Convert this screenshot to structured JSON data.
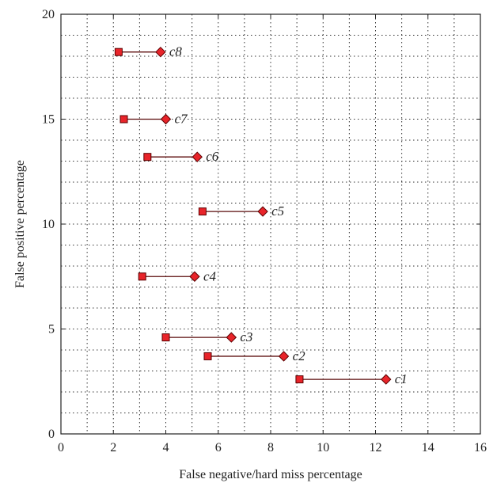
{
  "chart_data": {
    "type": "scatter",
    "xlabel": "False negative/hard miss percentage",
    "ylabel": "False positive percentage",
    "xlim": [
      0,
      16
    ],
    "ylim": [
      0,
      20
    ],
    "x_ticks": [
      "0",
      "2",
      "4",
      "6",
      "8",
      "10",
      "12",
      "14",
      "16"
    ],
    "y_ticks": [
      "0",
      "5",
      "10",
      "15",
      "20"
    ],
    "grid": true,
    "grid_style": "dotted",
    "colors": {
      "marker_fill": "#e8242a",
      "marker_edge": "#5a0000",
      "line": "#5a0a0a"
    },
    "series": [
      {
        "marker": "square"
      },
      {
        "marker": "diamond"
      }
    ],
    "pairs": [
      {
        "label": "c1",
        "square": [
          9.1,
          2.6
        ],
        "diamond": [
          12.4,
          2.6
        ]
      },
      {
        "label": "c2",
        "square": [
          5.6,
          3.7
        ],
        "diamond": [
          8.5,
          3.7
        ]
      },
      {
        "label": "c3",
        "square": [
          4.0,
          4.6
        ],
        "diamond": [
          6.5,
          4.6
        ]
      },
      {
        "label": "c4",
        "square": [
          3.1,
          7.5
        ],
        "diamond": [
          5.1,
          7.5
        ]
      },
      {
        "label": "c5",
        "square": [
          5.4,
          10.6
        ],
        "diamond": [
          7.7,
          10.6
        ]
      },
      {
        "label": "c6",
        "square": [
          3.3,
          13.2
        ],
        "diamond": [
          5.2,
          13.2
        ]
      },
      {
        "label": "c7",
        "square": [
          2.4,
          15.0
        ],
        "diamond": [
          4.0,
          15.0
        ]
      },
      {
        "label": "c8",
        "square": [
          2.2,
          18.2
        ],
        "diamond": [
          3.8,
          18.2
        ]
      }
    ]
  }
}
